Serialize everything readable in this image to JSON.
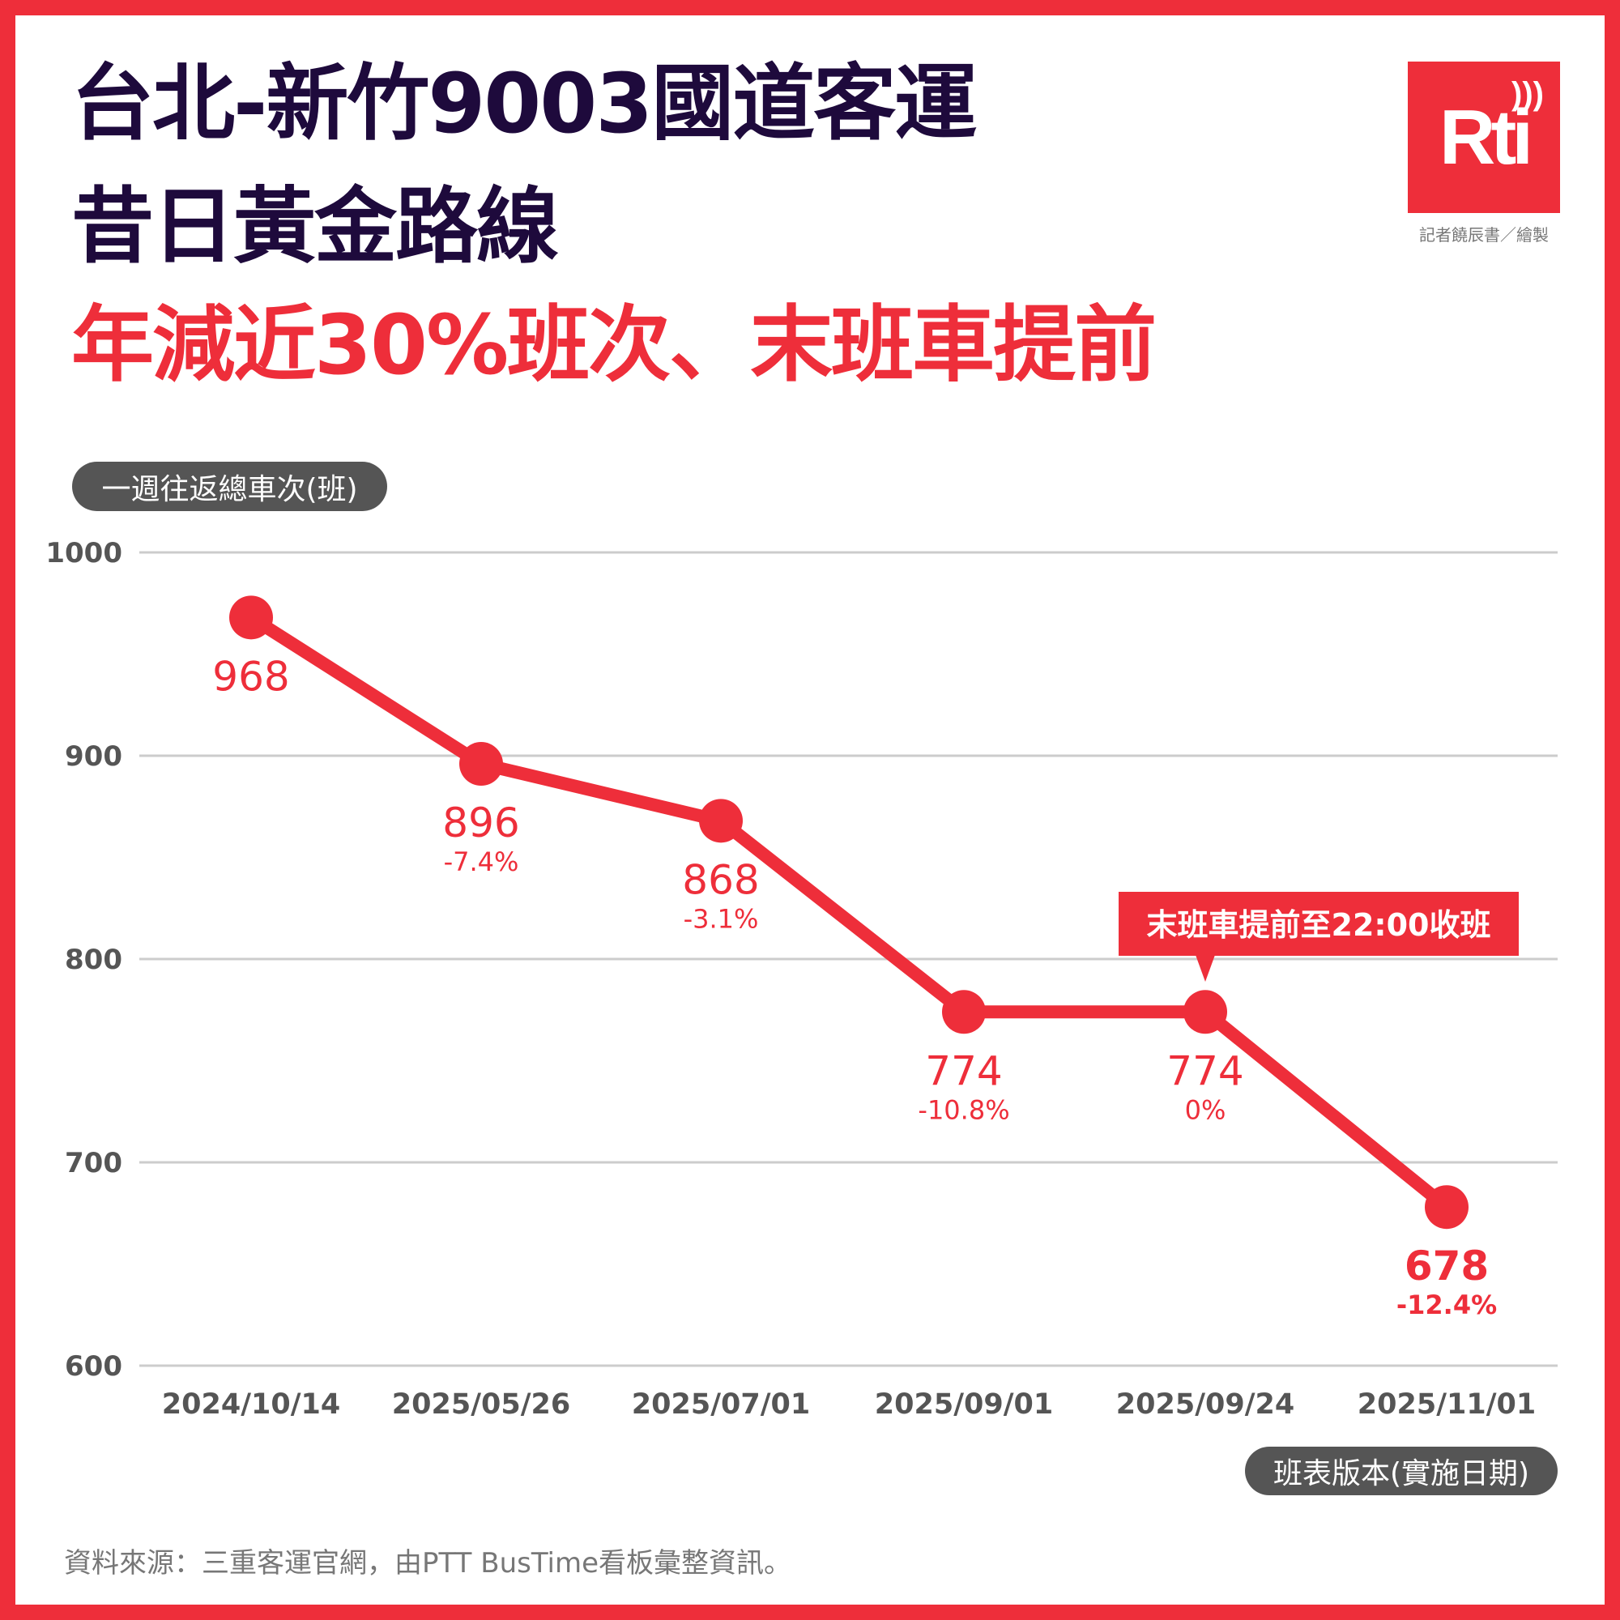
{
  "title": {
    "line1": "台北-新竹9003國道客運",
    "line2": "昔日黃金路線",
    "line3": "年減近30%班次、末班車提前"
  },
  "logo": {
    "text": "Rti",
    "credit": "記者饒辰書／繪製"
  },
  "y_axis_pill": "一週往返總車次(班)",
  "x_axis_pill": "班表版本(實施日期)",
  "annotation": "末班車提前至22:00收班",
  "source": "資料來源：三重客運官網，由PTT BusTime看板彙整資訊。",
  "colors": {
    "accent": "#ee2e3a",
    "title": "#1e0a3c",
    "grid": "#cccccc",
    "axis_text": "#555555"
  },
  "chart_data": {
    "type": "line",
    "title": "台北-新竹9003國道客運",
    "xlabel": "班表版本(實施日期)",
    "ylabel": "一週往返總車次(班)",
    "ylim": [
      600,
      1000
    ],
    "yticks": [
      1000,
      900,
      800,
      700,
      600
    ],
    "grid": true,
    "categories": [
      "2024/10/14",
      "2025/05/26",
      "2025/07/01",
      "2025/09/01",
      "2025/09/24",
      "2025/11/01"
    ],
    "values": [
      968,
      896,
      868,
      774,
      774,
      678
    ],
    "value_labels": [
      "968",
      "896",
      "868",
      "774",
      "774",
      "678"
    ],
    "pct_labels": [
      "",
      "-7.4%",
      "-3.1%",
      "-10.8%",
      "0%",
      "-12.4%"
    ]
  }
}
